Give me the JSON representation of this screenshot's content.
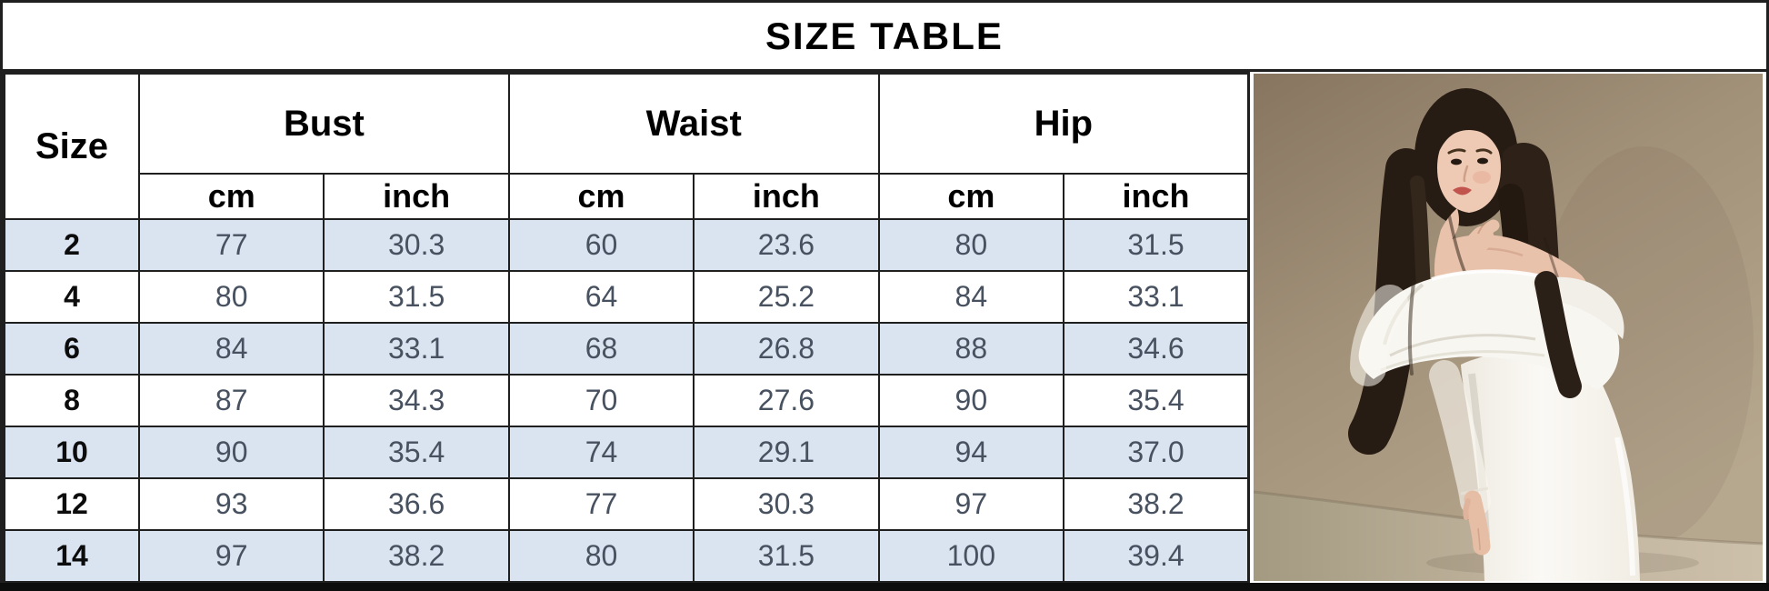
{
  "title": "SIZE TABLE",
  "colors": {
    "row_stripe": "#dae3f0",
    "border": "#1f1f1f",
    "value_text": "#47515f",
    "title_text": "#000000",
    "bottom_bar": "#0d0d0d",
    "photo_wall": "#a4947d",
    "photo_floor": "#c3b6a2",
    "dress": "#f8f6f1",
    "hair": "#271c13"
  },
  "chart_data": {
    "type": "table",
    "title": "SIZE TABLE",
    "corner_header": "Size",
    "column_groups": [
      {
        "label": "Bust",
        "sub": [
          "cm",
          "inch"
        ]
      },
      {
        "label": "Waist",
        "sub": [
          "cm",
          "inch"
        ]
      },
      {
        "label": "Hip",
        "sub": [
          "cm",
          "inch"
        ]
      }
    ],
    "rows": [
      {
        "size": "2",
        "values": [
          "77",
          "30.3",
          "60",
          "23.6",
          "80",
          "31.5"
        ]
      },
      {
        "size": "4",
        "values": [
          "80",
          "31.5",
          "64",
          "25.2",
          "84",
          "33.1"
        ]
      },
      {
        "size": "6",
        "values": [
          "84",
          "33.1",
          "68",
          "26.8",
          "88",
          "34.6"
        ]
      },
      {
        "size": "8",
        "values": [
          "87",
          "34.3",
          "70",
          "27.6",
          "90",
          "35.4"
        ]
      },
      {
        "size": "10",
        "values": [
          "90",
          "35.4",
          "74",
          "29.1",
          "94",
          "37.0"
        ]
      },
      {
        "size": "12",
        "values": [
          "93",
          "36.6",
          "77",
          "30.3",
          "97",
          "38.2"
        ]
      },
      {
        "size": "14",
        "values": [
          "97",
          "38.2",
          "80",
          "31.5",
          "100",
          "39.4"
        ]
      }
    ]
  },
  "photo": {
    "description": "Model with long dark hair wearing a white off-shoulder dress against a beige studio wall"
  }
}
